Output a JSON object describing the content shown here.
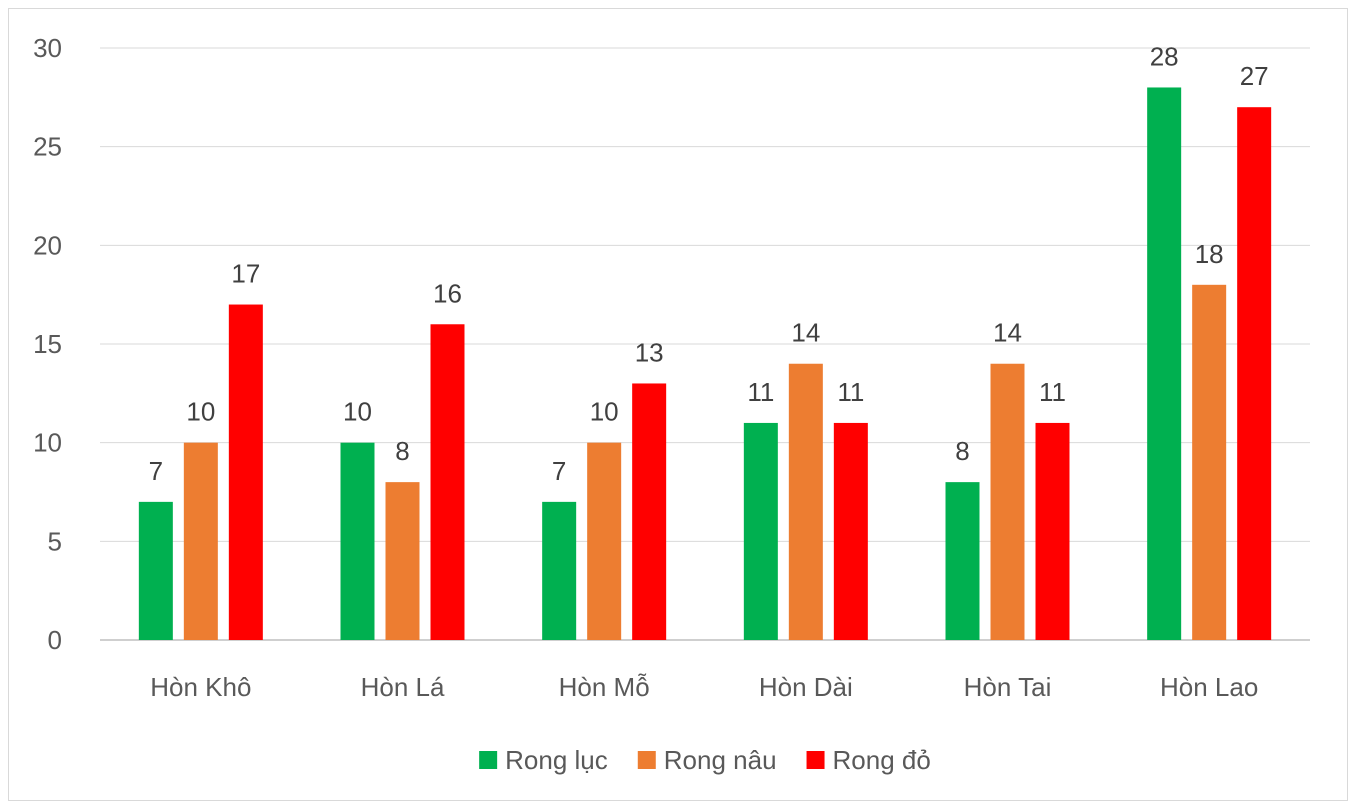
{
  "chart_data": {
    "type": "bar",
    "categories": [
      "Hòn Khô",
      "Hòn Lá",
      "Hòn Mỗ",
      "Hòn Dài",
      "Hòn Tai",
      "Hòn Lao"
    ],
    "series": [
      {
        "name": "Rong lục",
        "values": [
          7,
          10,
          7,
          11,
          8,
          28
        ],
        "color": "#00b050"
      },
      {
        "name": "Rong nâu",
        "values": [
          10,
          8,
          10,
          14,
          14,
          18
        ],
        "color": "#ed7d31"
      },
      {
        "name": "Rong đỏ",
        "values": [
          17,
          16,
          13,
          11,
          11,
          27
        ],
        "color": "#ff0000"
      }
    ],
    "ylim": [
      0,
      30
    ],
    "yticks": [
      0,
      5,
      10,
      15,
      20,
      25,
      30
    ],
    "grid": true,
    "legend_position": "bottom",
    "data_labels": true
  }
}
